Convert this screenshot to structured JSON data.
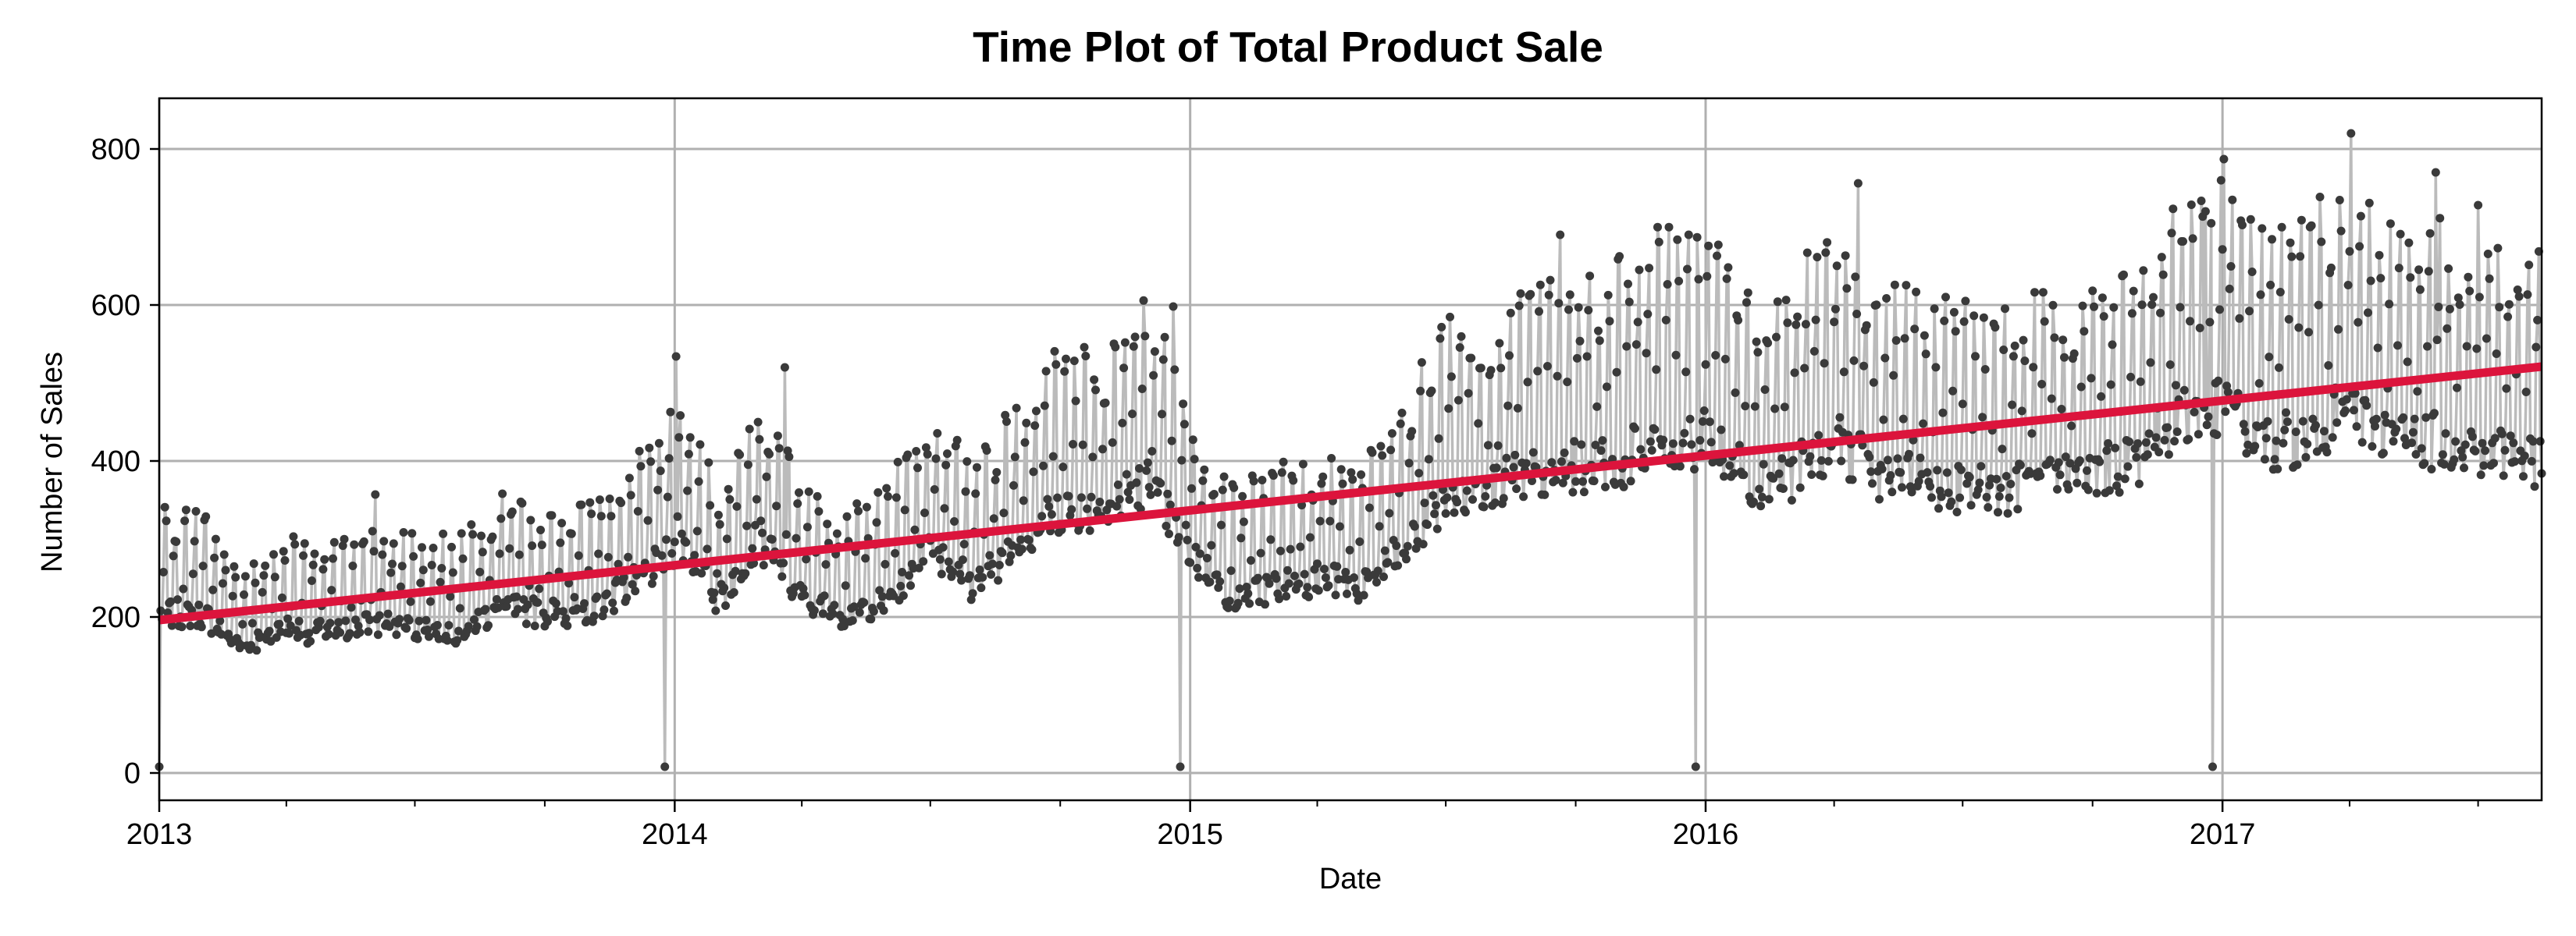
{
  "chart_data": {
    "type": "line",
    "title": "Time Plot of Total Product Sale",
    "xlabel": "Date",
    "ylabel": "Number of Sales",
    "x_range": [
      "2013-01-01",
      "2017-08-15"
    ],
    "ylim": [
      -35,
      865
    ],
    "grid": true,
    "x_ticks": [
      {
        "date": "2013-01-01",
        "label": "2013"
      },
      {
        "date": "2014-01-01",
        "label": "2014"
      },
      {
        "date": "2015-01-01",
        "label": "2015"
      },
      {
        "date": "2016-01-01",
        "label": "2016"
      },
      {
        "date": "2017-01-01",
        "label": "2017"
      }
    ],
    "y_ticks": [
      0,
      200,
      400,
      600,
      800
    ],
    "series": [
      {
        "kind": "daily sales (points with connecting line)",
        "color": "#3a3a3a",
        "line_color": "#bbbbbb",
        "points": [
          [
            "2013-01-01",
            3
          ],
          [
            "2013-02-01",
            230
          ],
          [
            "2013-03-01",
            180
          ],
          [
            "2013-04-01",
            210
          ],
          [
            "2013-05-01",
            200
          ],
          [
            "2013-06-01",
            215
          ],
          [
            "2013-07-01",
            210
          ],
          [
            "2013-08-01",
            205
          ],
          [
            "2013-09-01",
            240
          ],
          [
            "2013-10-01",
            230
          ],
          [
            "2013-11-01",
            235
          ],
          [
            "2013-12-01",
            270
          ],
          [
            "2013-12-25",
            5
          ],
          [
            "2014-01-08",
            330
          ],
          [
            "2014-02-01",
            245
          ],
          [
            "2014-03-01",
            340
          ],
          [
            "2014-04-01",
            250
          ],
          [
            "2014-05-01",
            230
          ],
          [
            "2014-06-01",
            250
          ],
          [
            "2014-07-01",
            330
          ],
          [
            "2014-08-01",
            270
          ],
          [
            "2014-09-01",
            330
          ],
          [
            "2014-10-01",
            380
          ],
          [
            "2014-11-01",
            380
          ],
          [
            "2014-12-01",
            420
          ],
          [
            "2014-12-25",
            7
          ],
          [
            "2015-01-08",
            300
          ],
          [
            "2015-02-01",
            250
          ],
          [
            "2015-03-01",
            270
          ],
          [
            "2015-04-01",
            280
          ],
          [
            "2015-05-01",
            270
          ],
          [
            "2015-06-01",
            320
          ],
          [
            "2015-07-01",
            400
          ],
          [
            "2015-08-01",
            410
          ],
          [
            "2015-09-01",
            430
          ],
          [
            "2015-10-01",
            440
          ],
          [
            "2015-11-01",
            450
          ],
          [
            "2015-12-01",
            480
          ],
          [
            "2015-12-25",
            10
          ],
          [
            "2016-01-08",
            480
          ],
          [
            "2016-02-01",
            420
          ],
          [
            "2016-03-01",
            430
          ],
          [
            "2016-04-01",
            480
          ],
          [
            "2016-05-01",
            430
          ],
          [
            "2016-06-01",
            420
          ],
          [
            "2016-07-01",
            410
          ],
          [
            "2016-08-01",
            410
          ],
          [
            "2016-09-01",
            420
          ],
          [
            "2016-10-01",
            430
          ],
          [
            "2016-11-01",
            450
          ],
          [
            "2016-12-01",
            520
          ],
          [
            "2016-12-25",
            8
          ],
          [
            "2017-01-08",
            520
          ],
          [
            "2017-02-01",
            470
          ],
          [
            "2017-03-01",
            490
          ],
          [
            "2017-04-01",
            520
          ],
          [
            "2017-05-01",
            480
          ],
          [
            "2017-06-01",
            480
          ],
          [
            "2017-07-01",
            470
          ],
          [
            "2017-08-15",
            450
          ]
        ],
        "peaks": [
          [
            "2013-06-03",
            357
          ],
          [
            "2013-09-01",
            358
          ],
          [
            "2014-01-02",
            534
          ],
          [
            "2014-03-20",
            520
          ],
          [
            "2014-12-20",
            598
          ],
          [
            "2015-09-20",
            690
          ],
          [
            "2015-12-20",
            690
          ],
          [
            "2016-04-18",
            756
          ],
          [
            "2016-12-20",
            720
          ],
          [
            "2017-01-02",
            787
          ],
          [
            "2017-04-02",
            820
          ],
          [
            "2017-06-01",
            770
          ],
          [
            "2017-07-01",
            728
          ]
        ]
      },
      {
        "kind": "linear trend",
        "color": "#dc143c",
        "start": [
          "2013-01-01",
          196
        ],
        "end": [
          "2017-08-15",
          521
        ]
      }
    ]
  }
}
